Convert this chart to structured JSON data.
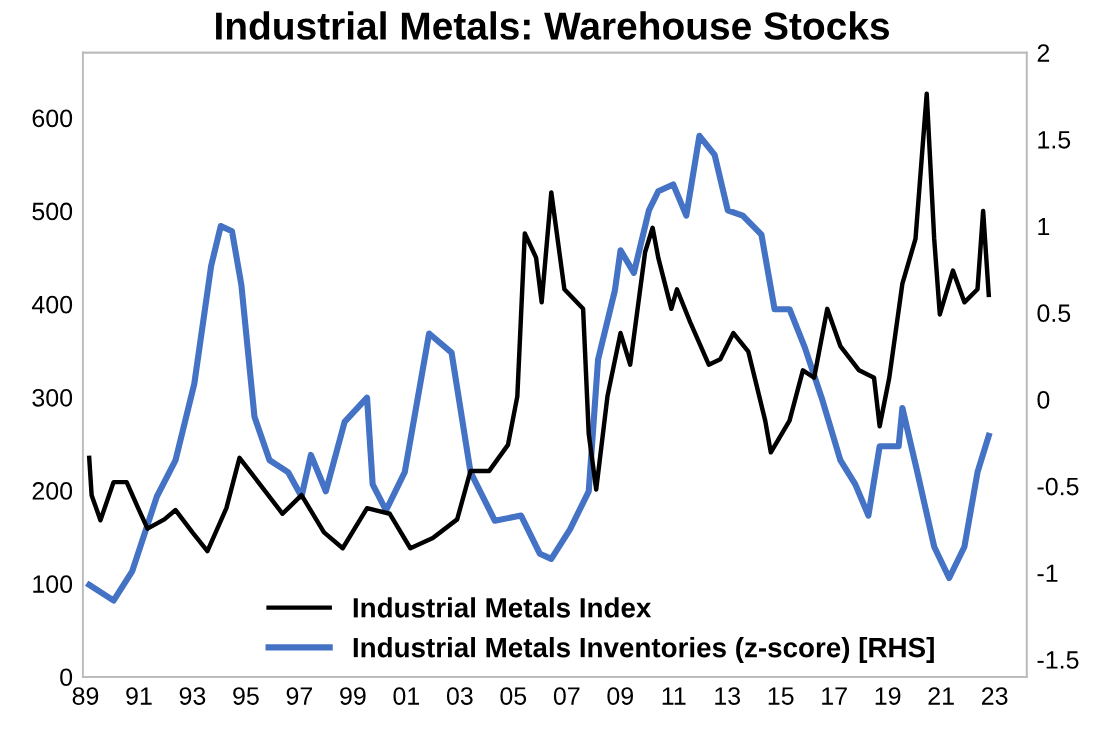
{
  "chart_data": {
    "type": "line",
    "title": "Industrial Metals: Warehouse Stocks",
    "xticks": [
      {
        "value": 1989,
        "label": "89"
      },
      {
        "value": 1991,
        "label": "91"
      },
      {
        "value": 1993,
        "label": "93"
      },
      {
        "value": 1995,
        "label": "95"
      },
      {
        "value": 1997,
        "label": "97"
      },
      {
        "value": 1999,
        "label": "99"
      },
      {
        "value": 2001,
        "label": "01"
      },
      {
        "value": 2003,
        "label": "03"
      },
      {
        "value": 2005,
        "label": "05"
      },
      {
        "value": 2007,
        "label": "07"
      },
      {
        "value": 2009,
        "label": "09"
      },
      {
        "value": 2011,
        "label": "11"
      },
      {
        "value": 2013,
        "label": "13"
      },
      {
        "value": 2015,
        "label": "15"
      },
      {
        "value": 2017,
        "label": "17"
      },
      {
        "value": 2019,
        "label": "19"
      },
      {
        "value": 2021,
        "label": "21"
      },
      {
        "value": 2023,
        "label": "23"
      }
    ],
    "xlim": [
      1988.9,
      2024.2
    ],
    "ylim": [
      0,
      670
    ],
    "yticks": [
      0,
      100,
      200,
      300,
      400,
      500,
      600
    ],
    "y2lim": [
      -1.6,
      2
    ],
    "y2ticks": [
      -1.5,
      -1,
      -0.5,
      0,
      0.5,
      1,
      1.5,
      2
    ],
    "legend": "bottom",
    "grid": false,
    "series": [
      {
        "name": "Industrial Metals Index",
        "color": "#000000",
        "x": [
          1989.14,
          1989.23,
          1989.56,
          1990.05,
          1990.54,
          1990.97,
          1991.32,
          1991.95,
          1992.37,
          1993.0,
          1993.56,
          1994.27,
          1994.76,
          1995.46,
          1996.37,
          1997.08,
          1997.92,
          1998.62,
          1999.53,
          2000.38,
          2001.15,
          2001.99,
          2002.9,
          2003.4,
          2004.1,
          2004.8,
          2005.15,
          2005.43,
          2005.85,
          2006.06,
          2006.42,
          2006.91,
          2007.61,
          2007.82,
          2008.1,
          2008.52,
          2009.01,
          2009.37,
          2009.93,
          2010.21,
          2010.42,
          2010.91,
          2011.12,
          2011.61,
          2012.31,
          2012.74,
          2013.23,
          2013.79,
          2014.42,
          2014.63,
          2015.33,
          2015.83,
          2016.25,
          2016.74,
          2017.23,
          2017.93,
          2018.49,
          2018.7,
          2019.06,
          2019.55,
          2020.04,
          2020.46,
          2020.74,
          2020.95,
          2021.44,
          2021.87,
          2022.36,
          2022.57,
          2022.78
        ],
        "values": [
          235,
          195,
          168,
          209,
          209,
          181,
          159,
          169,
          179,
          155,
          135,
          181,
          235,
          209,
          175,
          195,
          155,
          138,
          181,
          175,
          138,
          149,
          169,
          221,
          221,
          249,
          301,
          476,
          450,
          402,
          520,
          416,
          395,
          261,
          201,
          301,
          369,
          335,
          456,
          482,
          450,
          395,
          416,
          381,
          335,
          341,
          369,
          349,
          275,
          241,
          275,
          329,
          321,
          395,
          355,
          329,
          321,
          269,
          321,
          422,
          470,
          626,
          470,
          389,
          436,
          402,
          416,
          500,
          410
        ]
      },
      {
        "name": "Industrial Metals Inventories (z-score) [RHS]",
        "color": "#4472c4",
        "axis": "y2",
        "x": [
          1989.14,
          1990.05,
          1990.75,
          1991.67,
          1992.37,
          1993.07,
          1993.7,
          1994.06,
          1994.48,
          1994.83,
          1995.32,
          1995.88,
          1996.58,
          1997.08,
          1997.43,
          1997.99,
          1998.69,
          1999.53,
          1999.74,
          2000.24,
          2000.94,
          2001.85,
          2002.69,
          2003.4,
          2004.31,
          2005.29,
          2005.99,
          2006.42,
          2007.12,
          2007.82,
          2008.17,
          2008.8,
          2009.01,
          2009.51,
          2010.07,
          2010.42,
          2010.98,
          2011.47,
          2011.96,
          2012.53,
          2013.02,
          2013.58,
          2014.28,
          2014.77,
          2015.33,
          2015.9,
          2016.53,
          2017.23,
          2017.79,
          2018.28,
          2018.7,
          2019.41,
          2019.55,
          2020.11,
          2020.74,
          2021.3,
          2021.87,
          2022.36,
          2022.78
        ],
        "values": [
          -1.07,
          -1.16,
          -0.99,
          -0.56,
          -0.35,
          0.09,
          0.77,
          1.0,
          0.97,
          0.66,
          -0.1,
          -0.35,
          -0.42,
          -0.56,
          -0.32,
          -0.53,
          -0.13,
          0.01,
          -0.49,
          -0.64,
          -0.42,
          0.38,
          0.27,
          -0.42,
          -0.7,
          -0.67,
          -0.89,
          -0.92,
          -0.75,
          -0.53,
          0.23,
          0.63,
          0.86,
          0.73,
          1.09,
          1.2,
          1.24,
          1.06,
          1.52,
          1.41,
          1.09,
          1.06,
          0.95,
          0.52,
          0.52,
          0.3,
          0.01,
          -0.35,
          -0.49,
          -0.67,
          -0.27,
          -0.27,
          -0.05,
          -0.42,
          -0.85,
          -1.03,
          -0.85,
          -0.42,
          -0.21
        ]
      }
    ]
  }
}
